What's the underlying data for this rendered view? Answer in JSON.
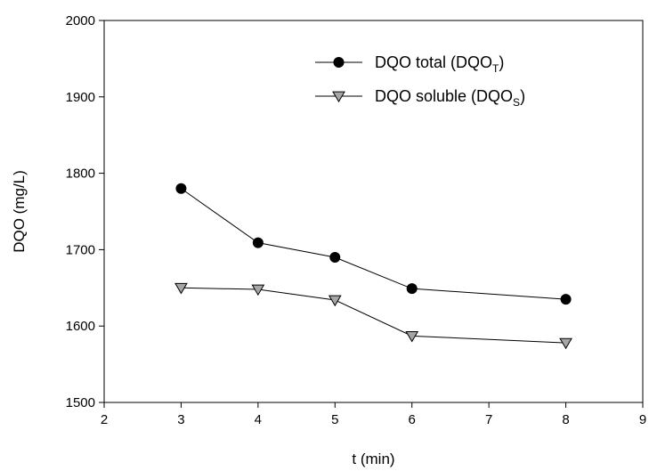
{
  "chart_data": {
    "type": "line",
    "xlabel": "t (min)",
    "ylabel": "DQO (mg/L)",
    "xlim": [
      2,
      9
    ],
    "ylim": [
      1500,
      2000
    ],
    "xticks": [
      "2",
      "3",
      "4",
      "5",
      "6",
      "7",
      "8",
      "9"
    ],
    "yticks": [
      "1500",
      "1600",
      "1700",
      "1800",
      "1900",
      "2000"
    ],
    "grid": false,
    "legend_position": "top-right",
    "series": [
      {
        "name": "DQO total (DQOT)",
        "legend_main": "DQO total (DQO",
        "legend_sub": "T",
        "legend_close": ")",
        "marker": "filled-circle",
        "color": "#000000",
        "x": [
          3,
          4,
          5,
          6,
          8
        ],
        "y": [
          1780,
          1709,
          1690,
          1649,
          1635
        ]
      },
      {
        "name": "DQO soluble (DQOS)",
        "legend_main": "DQO soluble (DQO",
        "legend_sub": "S",
        "legend_close": ")",
        "marker": "down-triangle",
        "color": "#a6a6a6",
        "x": [
          3,
          4,
          5,
          6,
          8
        ],
        "y": [
          1650,
          1648,
          1634,
          1587,
          1578
        ]
      }
    ]
  }
}
